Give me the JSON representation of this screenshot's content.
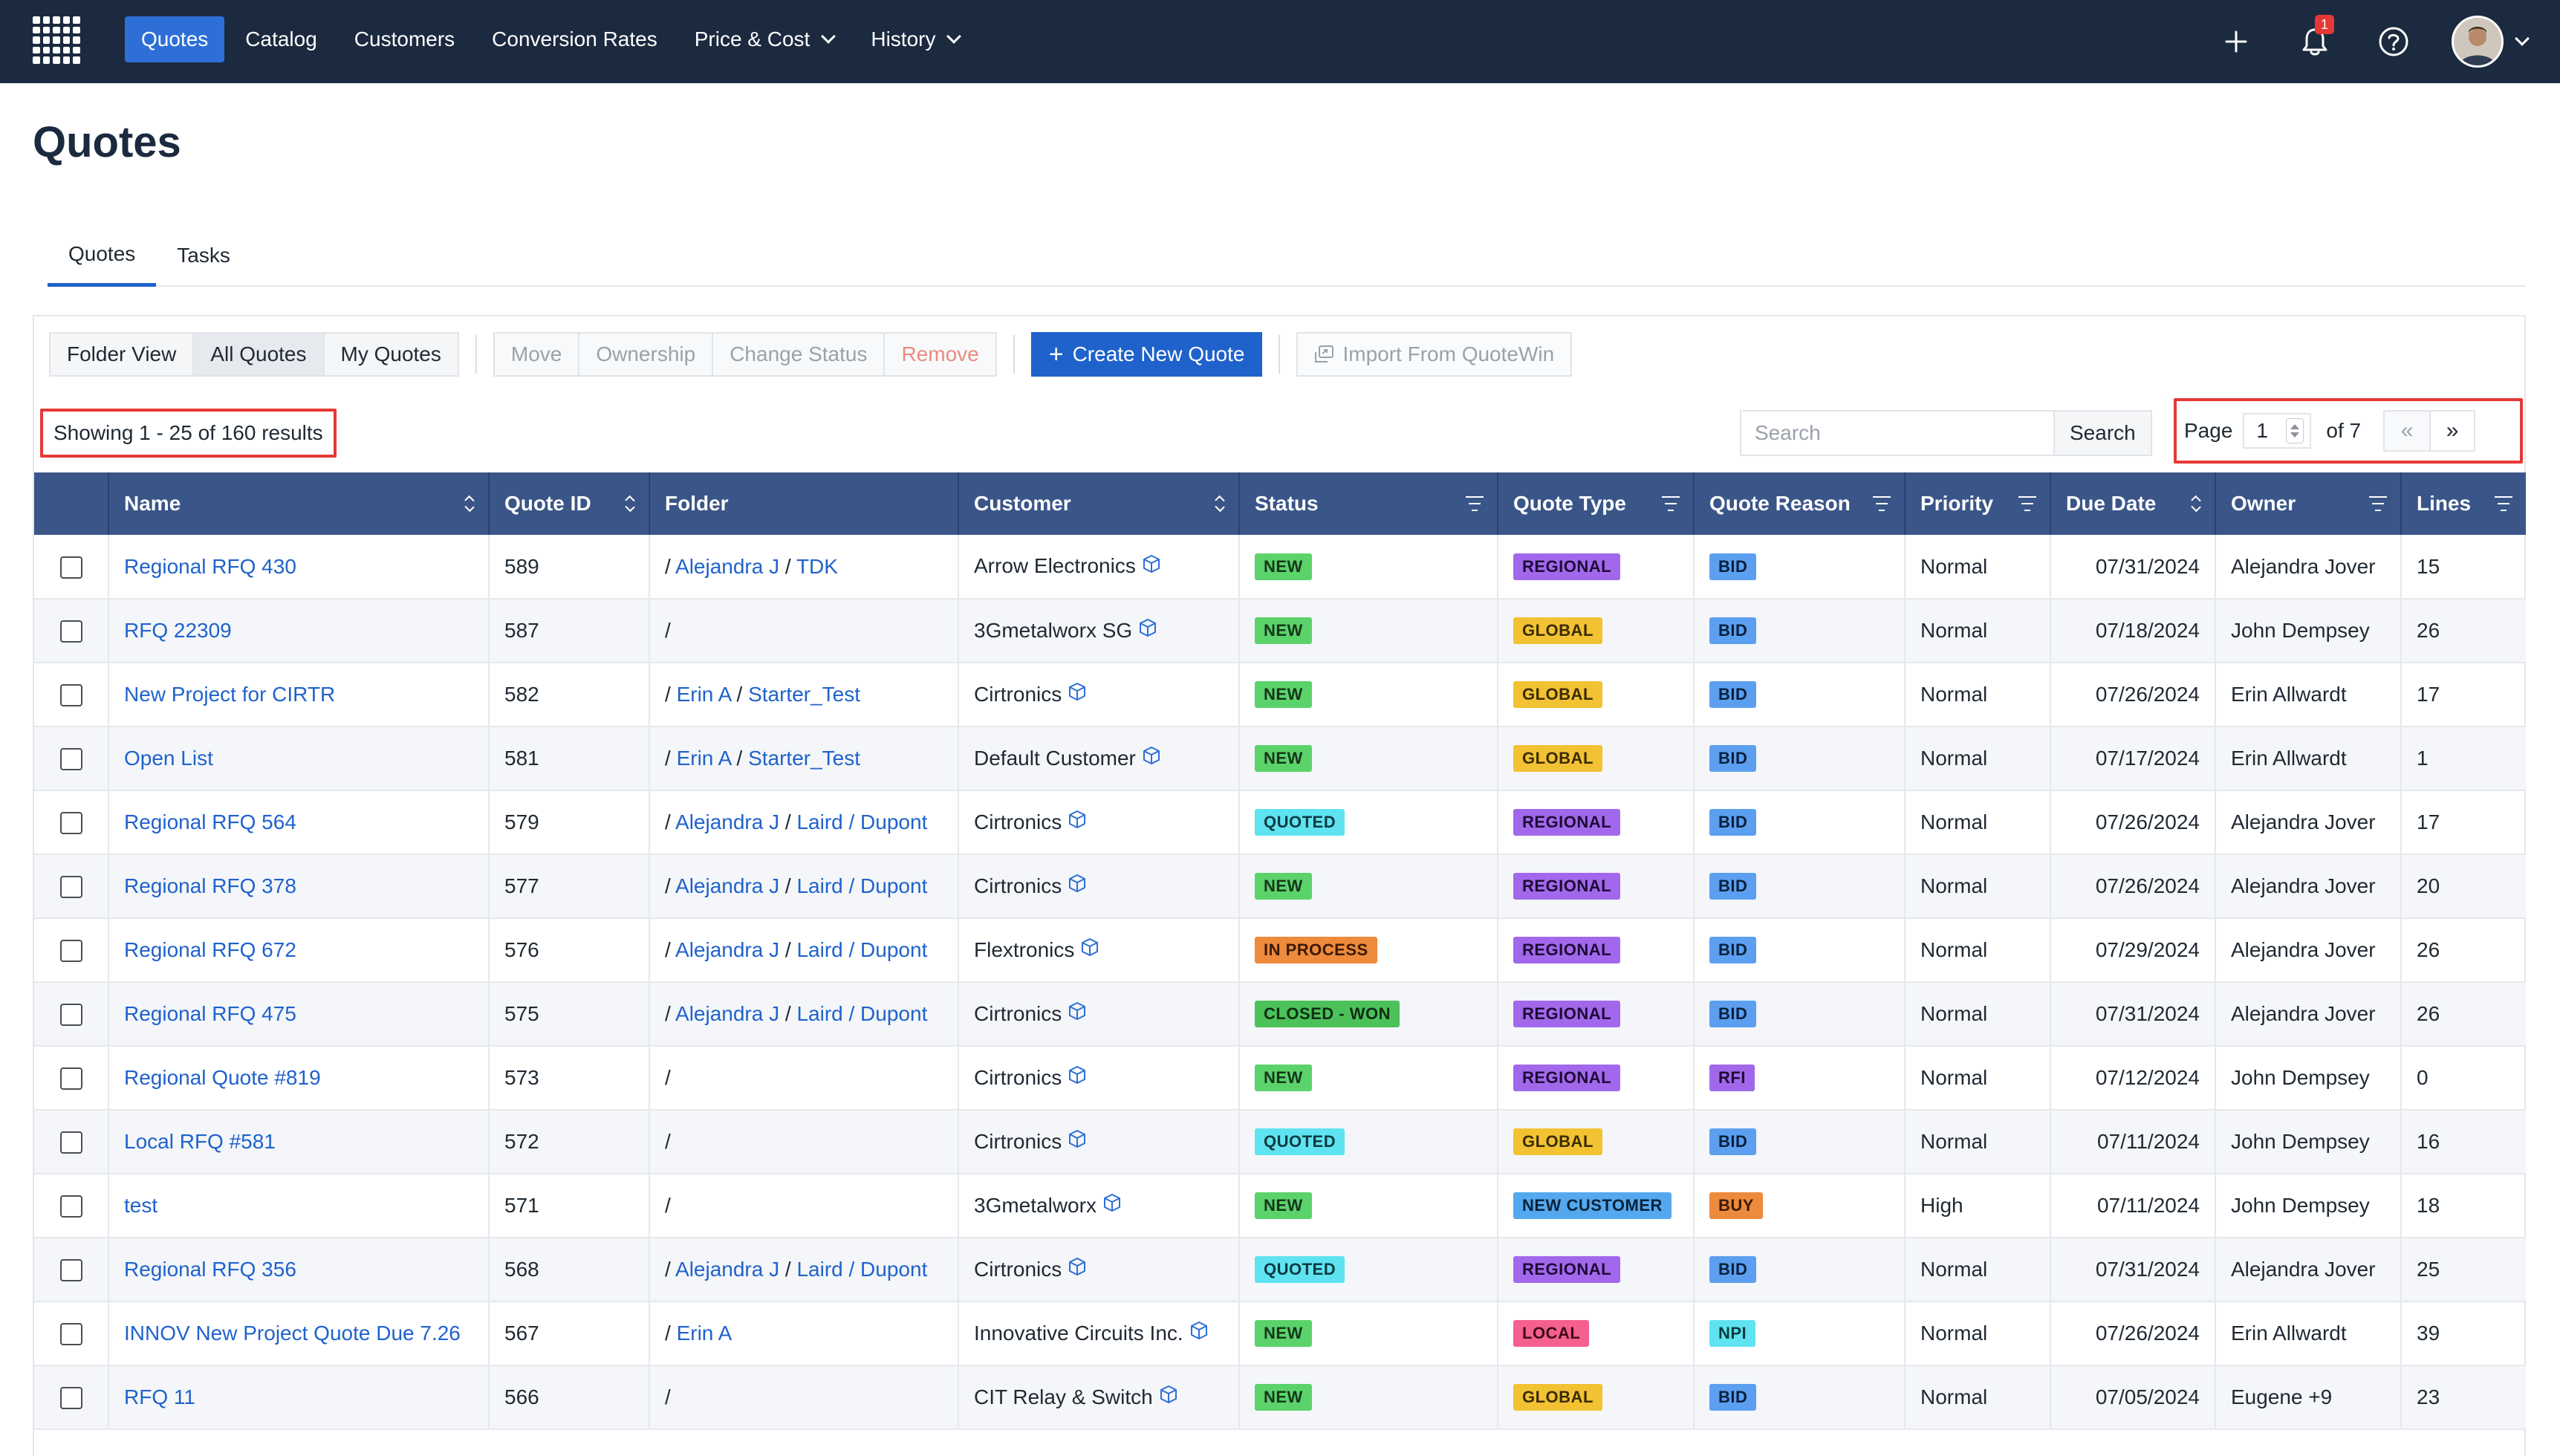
{
  "nav": {
    "items": [
      {
        "label": "Quotes",
        "active": true,
        "dropdown": false
      },
      {
        "label": "Catalog",
        "active": false,
        "dropdown": false
      },
      {
        "label": "Customers",
        "active": false,
        "dropdown": false
      },
      {
        "label": "Conversion Rates",
        "active": false,
        "dropdown": false
      },
      {
        "label": "Price & Cost",
        "active": false,
        "dropdown": true
      },
      {
        "label": "History",
        "active": false,
        "dropdown": true
      }
    ],
    "notification_count": "1",
    "icons": [
      "grid-logo-icon",
      "plus-icon",
      "bell-icon",
      "help-icon",
      "avatar",
      "chevron-down-icon"
    ]
  },
  "page": {
    "title": "Quotes"
  },
  "tabs": [
    {
      "label": "Quotes",
      "active": true
    },
    {
      "label": "Tasks",
      "active": false
    }
  ],
  "toolbar": {
    "view_buttons": [
      {
        "label": "Folder View",
        "active": false
      },
      {
        "label": "All Quotes",
        "active": true
      },
      {
        "label": "My Quotes",
        "active": false
      }
    ],
    "action_buttons": [
      {
        "label": "Move",
        "state": "disabled"
      },
      {
        "label": "Ownership",
        "state": "disabled"
      },
      {
        "label": "Change Status",
        "state": "disabled"
      },
      {
        "label": "Remove",
        "state": "danger-disabled"
      }
    ],
    "create_label": "Create New Quote",
    "import_label": "Import From QuoteWin"
  },
  "results_text": "Showing 1 - 25 of 160 results",
  "search": {
    "placeholder": "Search",
    "button_label": "Search"
  },
  "pagination": {
    "page_label": "Page",
    "current_page": "1",
    "of_label": "of 7",
    "prev": "«",
    "next": "»"
  },
  "table": {
    "columns": [
      {
        "label": "",
        "icon": "none"
      },
      {
        "label": "Name",
        "icon": "sort"
      },
      {
        "label": "Quote ID",
        "icon": "sort"
      },
      {
        "label": "Folder",
        "icon": "none"
      },
      {
        "label": "Customer",
        "icon": "sort"
      },
      {
        "label": "Status",
        "icon": "filter"
      },
      {
        "label": "Quote Type",
        "icon": "filter"
      },
      {
        "label": "Quote Reason",
        "icon": "filter"
      },
      {
        "label": "Priority",
        "icon": "filter"
      },
      {
        "label": "Due Date",
        "icon": "sort"
      },
      {
        "label": "Owner",
        "icon": "filter"
      },
      {
        "label": "Lines",
        "icon": "filter"
      }
    ],
    "rows": [
      {
        "name": "Regional RFQ 430",
        "quote_id": "589",
        "folder": [
          "Alejandra J",
          "TDK"
        ],
        "customer": "Arrow Electronics",
        "status": "NEW",
        "type": "REGIONAL",
        "reason": "BID",
        "priority": "Normal",
        "due": "07/31/2024",
        "owner": "Alejandra Jover",
        "lines": "15"
      },
      {
        "name": "RFQ 22309",
        "quote_id": "587",
        "folder": [],
        "customer": "3Gmetalworx SG",
        "status": "NEW",
        "type": "GLOBAL",
        "reason": "BID",
        "priority": "Normal",
        "due": "07/18/2024",
        "owner": "John Dempsey",
        "lines": "26"
      },
      {
        "name": "New Project for CIRTR",
        "quote_id": "582",
        "folder": [
          "Erin A",
          "Starter_Test"
        ],
        "customer": "Cirtronics",
        "status": "NEW",
        "type": "GLOBAL",
        "reason": "BID",
        "priority": "Normal",
        "due": "07/26/2024",
        "owner": "Erin Allwardt",
        "lines": "17"
      },
      {
        "name": "Open List",
        "quote_id": "581",
        "folder": [
          "Erin A",
          "Starter_Test"
        ],
        "customer": "Default Customer",
        "status": "NEW",
        "type": "GLOBAL",
        "reason": "BID",
        "priority": "Normal",
        "due": "07/17/2024",
        "owner": "Erin Allwardt",
        "lines": "1"
      },
      {
        "name": "Regional RFQ 564",
        "quote_id": "579",
        "folder": [
          "Alejandra J",
          "Laird / Dupont"
        ],
        "customer": "Cirtronics",
        "status": "QUOTED",
        "type": "REGIONAL",
        "reason": "BID",
        "priority": "Normal",
        "due": "07/26/2024",
        "owner": "Alejandra Jover",
        "lines": "17"
      },
      {
        "name": "Regional RFQ 378",
        "quote_id": "577",
        "folder": [
          "Alejandra J",
          "Laird / Dupont"
        ],
        "customer": "Cirtronics",
        "status": "NEW",
        "type": "REGIONAL",
        "reason": "BID",
        "priority": "Normal",
        "due": "07/26/2024",
        "owner": "Alejandra Jover",
        "lines": "20"
      },
      {
        "name": "Regional RFQ 672",
        "quote_id": "576",
        "folder": [
          "Alejandra J",
          "Laird / Dupont"
        ],
        "customer": "Flextronics",
        "status": "IN PROCESS",
        "type": "REGIONAL",
        "reason": "BID",
        "priority": "Normal",
        "due": "07/29/2024",
        "owner": "Alejandra Jover",
        "lines": "26"
      },
      {
        "name": "Regional RFQ 475",
        "quote_id": "575",
        "folder": [
          "Alejandra J",
          "Laird / Dupont"
        ],
        "customer": "Cirtronics",
        "status": "CLOSED - WON",
        "type": "REGIONAL",
        "reason": "BID",
        "priority": "Normal",
        "due": "07/31/2024",
        "owner": "Alejandra Jover",
        "lines": "26"
      },
      {
        "name": "Regional Quote #819",
        "quote_id": "573",
        "folder": [],
        "customer": "Cirtronics",
        "status": "NEW",
        "type": "REGIONAL",
        "reason": "RFI",
        "priority": "Normal",
        "due": "07/12/2024",
        "owner": "John Dempsey",
        "lines": "0"
      },
      {
        "name": "Local RFQ #581",
        "quote_id": "572",
        "folder": [],
        "customer": "Cirtronics",
        "status": "QUOTED",
        "type": "GLOBAL",
        "reason": "BID",
        "priority": "Normal",
        "due": "07/11/2024",
        "owner": "John Dempsey",
        "lines": "16"
      },
      {
        "name": "test",
        "quote_id": "571",
        "folder": [],
        "customer": "3Gmetalworx",
        "status": "NEW",
        "type": "NEW CUSTOMER",
        "reason": "BUY",
        "priority": "High",
        "due": "07/11/2024",
        "owner": "John Dempsey",
        "lines": "18"
      },
      {
        "name": "Regional RFQ 356",
        "quote_id": "568",
        "folder": [
          "Alejandra J",
          "Laird / Dupont"
        ],
        "customer": "Cirtronics",
        "status": "QUOTED",
        "type": "REGIONAL",
        "reason": "BID",
        "priority": "Normal",
        "due": "07/31/2024",
        "owner": "Alejandra Jover",
        "lines": "25"
      },
      {
        "name": "INNOV New Project Quote Due 7.26",
        "quote_id": "567",
        "folder": [
          "Erin A"
        ],
        "customer": "Innovative Circuits Inc.",
        "status": "NEW",
        "type": "LOCAL",
        "reason": "NPI",
        "priority": "Normal",
        "due": "07/26/2024",
        "owner": "Erin Allwardt",
        "lines": "39"
      },
      {
        "name": "RFQ 11",
        "quote_id": "566",
        "folder": [],
        "customer": "CIT Relay & Switch",
        "status": "NEW",
        "type": "GLOBAL",
        "reason": "BID",
        "priority": "Normal",
        "due": "07/05/2024",
        "owner": "Eugene +9",
        "lines": "23"
      }
    ]
  },
  "tag_colors": {
    "NEW": {
      "bg": "#5bd36a",
      "fg": "#14361b"
    },
    "QUOTED": {
      "bg": "#5fe3f0",
      "fg": "#0d3a40"
    },
    "IN PROCESS": {
      "bg": "#ee8a3c",
      "fg": "#3b1a05"
    },
    "CLOSED - WON": {
      "bg": "#4cc15a",
      "fg": "#0e2e13"
    },
    "REGIONAL": {
      "bg": "#a268ec",
      "fg": "#1d0b36"
    },
    "GLOBAL": {
      "bg": "#f2c233",
      "fg": "#3a2c03"
    },
    "NEW CUSTOMER": {
      "bg": "#54a8ef",
      "fg": "#08223b"
    },
    "LOCAL": {
      "bg": "#f5608e",
      "fg": "#3e0a1c"
    },
    "BID": {
      "bg": "#5c9ff0",
      "fg": "#0a1f3b"
    },
    "RFI": {
      "bg": "#a268ec",
      "fg": "#1d0b36"
    },
    "BUY": {
      "bg": "#ee8a3c",
      "fg": "#3b1a05"
    },
    "NPI": {
      "bg": "#5fe3f0",
      "fg": "#0d3a40"
    }
  }
}
